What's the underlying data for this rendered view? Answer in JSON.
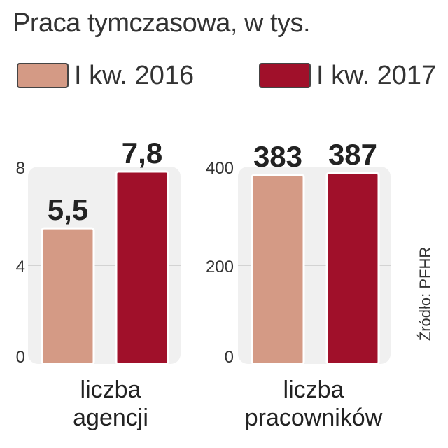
{
  "title": "Praca tymczasowa, w tys.",
  "source": "Źródło: PFHR",
  "colors": {
    "series_2016": "#d49a85",
    "series_2017": "#a0102a",
    "panel_bg": "#f0f0f0"
  },
  "legend": [
    {
      "label": "I kw. 2016",
      "color": "#d49a85"
    },
    {
      "label": "I kw. 2017",
      "color": "#a0102a"
    }
  ],
  "chart_data": [
    {
      "type": "bar",
      "xlabel": "liczba agencji",
      "categories": [
        "I kw. 2016",
        "I kw. 2017"
      ],
      "series": [
        {
          "values": [
            5.5,
            7.8
          ]
        }
      ],
      "value_labels": [
        "5,5",
        "7,8"
      ],
      "ylim": [
        0,
        8
      ],
      "yticks": [
        "0",
        "4",
        "8"
      ],
      "grid": true
    },
    {
      "type": "bar",
      "xlabel": "liczba pracowników",
      "categories": [
        "I kw. 2016",
        "I kw. 2017"
      ],
      "series": [
        {
          "values": [
            383,
            387
          ]
        }
      ],
      "value_labels": [
        "383",
        "387"
      ],
      "ylim": [
        0,
        400
      ],
      "yticks": [
        "0",
        "200",
        "400"
      ],
      "grid": true
    }
  ],
  "panel_labels": [
    [
      "liczba",
      "agencji"
    ],
    [
      "liczba",
      "pracowników"
    ]
  ]
}
